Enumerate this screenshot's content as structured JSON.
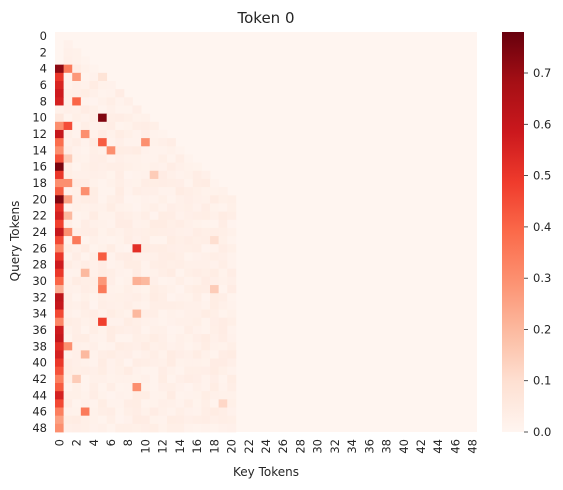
{
  "chart_data": {
    "type": "heatmap",
    "title": "Token 0",
    "xlabel": "Key Tokens",
    "ylabel": "Query Tokens",
    "n_rows": 49,
    "n_cols": 49,
    "x_ticks": [
      0,
      2,
      4,
      6,
      8,
      10,
      12,
      14,
      16,
      18,
      20,
      22,
      24,
      26,
      28,
      30,
      32,
      34,
      36,
      38,
      40,
      42,
      44,
      46,
      48
    ],
    "y_ticks": [
      0,
      2,
      4,
      6,
      8,
      10,
      12,
      14,
      16,
      18,
      20,
      22,
      24,
      26,
      28,
      30,
      32,
      34,
      36,
      38,
      40,
      42,
      44,
      46,
      48
    ],
    "colorbar": {
      "min": 0.0,
      "max": 0.78,
      "ticks": [
        "0.0",
        "0.1",
        "0.2",
        "0.3",
        "0.4",
        "0.5",
        "0.6",
        "0.7"
      ],
      "colormap": "Reds"
    },
    "notes": "Lower-triangular causal attention; values read approximately from color.",
    "first_column": [
      0,
      0,
      0,
      0,
      0.72,
      0.5,
      0.55,
      0.58,
      0.56,
      0.02,
      0.06,
      0.3,
      0.6,
      0.38,
      0.3,
      0.44,
      0.75,
      0.5,
      0.3,
      0.42,
      0.74,
      0.52,
      0.56,
      0.48,
      0.6,
      0.46,
      0.32,
      0.5,
      0.58,
      0.5,
      0.4,
      0.22,
      0.62,
      0.6,
      0.46,
      0.32,
      0.58,
      0.6,
      0.52,
      0.56,
      0.5,
      0.44,
      0.34,
      0.42,
      0.56,
      0.46,
      0.34,
      0.26,
      0.3
    ],
    "highlights": [
      {
        "row": 4,
        "col": 1,
        "value": 0.35
      },
      {
        "row": 5,
        "col": 2,
        "value": 0.28
      },
      {
        "row": 5,
        "col": 5,
        "value": 0.08
      },
      {
        "row": 8,
        "col": 2,
        "value": 0.4
      },
      {
        "row": 10,
        "col": 5,
        "value": 0.74
      },
      {
        "row": 11,
        "col": 1,
        "value": 0.45
      },
      {
        "row": 12,
        "col": 3,
        "value": 0.3
      },
      {
        "row": 13,
        "col": 5,
        "value": 0.42
      },
      {
        "row": 13,
        "col": 10,
        "value": 0.3
      },
      {
        "row": 14,
        "col": 6,
        "value": 0.3
      },
      {
        "row": 15,
        "col": 1,
        "value": 0.15
      },
      {
        "row": 17,
        "col": 11,
        "value": 0.15
      },
      {
        "row": 18,
        "col": 1,
        "value": 0.3
      },
      {
        "row": 19,
        "col": 3,
        "value": 0.3
      },
      {
        "row": 20,
        "col": 1,
        "value": 0.25
      },
      {
        "row": 22,
        "col": 1,
        "value": 0.2
      },
      {
        "row": 24,
        "col": 1,
        "value": 0.3
      },
      {
        "row": 25,
        "col": 2,
        "value": 0.35
      },
      {
        "row": 25,
        "col": 18,
        "value": 0.1
      },
      {
        "row": 26,
        "col": 9,
        "value": 0.52
      },
      {
        "row": 27,
        "col": 5,
        "value": 0.42
      },
      {
        "row": 29,
        "col": 3,
        "value": 0.2
      },
      {
        "row": 30,
        "col": 5,
        "value": 0.28
      },
      {
        "row": 30,
        "col": 9,
        "value": 0.22
      },
      {
        "row": 30,
        "col": 10,
        "value": 0.2
      },
      {
        "row": 31,
        "col": 5,
        "value": 0.35
      },
      {
        "row": 31,
        "col": 18,
        "value": 0.15
      },
      {
        "row": 34,
        "col": 9,
        "value": 0.2
      },
      {
        "row": 35,
        "col": 5,
        "value": 0.48
      },
      {
        "row": 38,
        "col": 1,
        "value": 0.3
      },
      {
        "row": 39,
        "col": 3,
        "value": 0.2
      },
      {
        "row": 42,
        "col": 2,
        "value": 0.15
      },
      {
        "row": 43,
        "col": 9,
        "value": 0.3
      },
      {
        "row": 45,
        "col": 19,
        "value": 0.12
      },
      {
        "row": 46,
        "col": 3,
        "value": 0.35
      }
    ]
  }
}
